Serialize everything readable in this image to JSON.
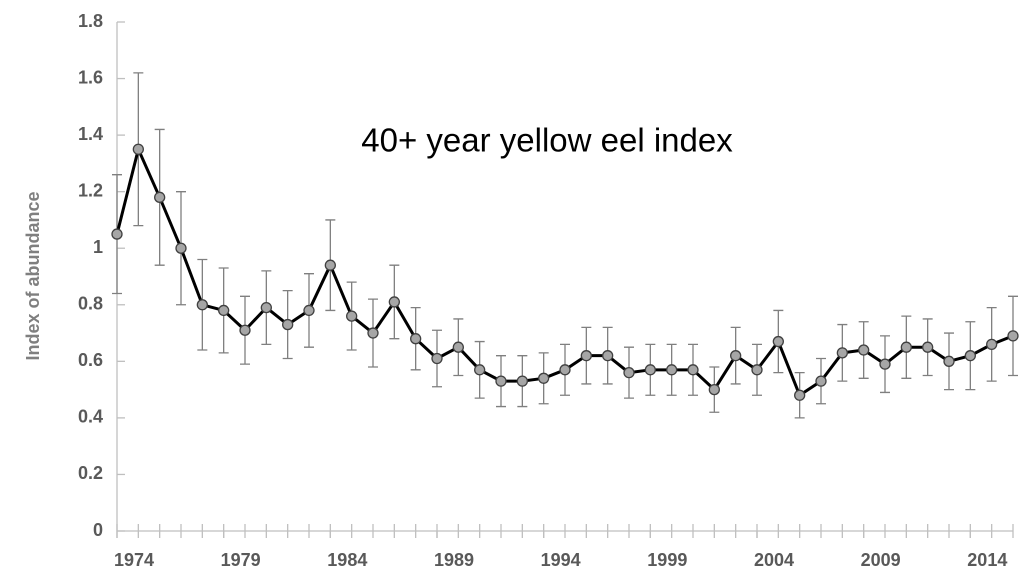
{
  "chart_data": {
    "type": "line",
    "annotation": "40+ year yellow eel index",
    "y_label": "Index of abundance",
    "x": [
      1974,
      1975,
      1976,
      1977,
      1978,
      1979,
      1980,
      1981,
      1982,
      1983,
      1984,
      1985,
      1986,
      1987,
      1988,
      1989,
      1990,
      1991,
      1992,
      1993,
      1994,
      1995,
      1996,
      1997,
      1998,
      1999,
      2000,
      2001,
      2002,
      2003,
      2004,
      2005,
      2006,
      2007,
      2008,
      2009,
      2010,
      2011,
      2012,
      2013,
      2014,
      2015,
      2016
    ],
    "series": [
      {
        "color": "#000000",
        "marker_color": "#a6a6a6",
        "values": [
          1.05,
          1.35,
          1.18,
          1.0,
          0.8,
          0.78,
          0.71,
          0.79,
          0.73,
          0.78,
          0.94,
          0.76,
          0.7,
          0.81,
          0.68,
          0.61,
          0.65,
          0.57,
          0.53,
          0.53,
          0.54,
          0.57,
          0.62,
          0.62,
          0.56,
          0.57,
          0.57,
          0.57,
          0.5,
          0.62,
          0.57,
          0.67,
          0.48,
          0.53,
          0.63,
          0.64,
          0.59,
          0.65,
          0.65,
          0.6,
          0.62,
          0.66,
          0.69
        ],
        "errors": [
          0.21,
          0.27,
          0.24,
          0.2,
          0.16,
          0.15,
          0.12,
          0.13,
          0.12,
          0.13,
          0.16,
          0.12,
          0.12,
          0.13,
          0.11,
          0.1,
          0.1,
          0.1,
          0.09,
          0.09,
          0.09,
          0.09,
          0.1,
          0.1,
          0.09,
          0.09,
          0.09,
          0.09,
          0.08,
          0.1,
          0.09,
          0.11,
          0.08,
          0.08,
          0.1,
          0.1,
          0.1,
          0.11,
          0.1,
          0.1,
          0.12,
          0.13,
          0.14
        ]
      }
    ],
    "xlim": [
      1974,
      2016
    ],
    "xticks": [
      1974,
      1979,
      1984,
      1989,
      1994,
      1999,
      2004,
      2009,
      2014
    ],
    "ylim": [
      0,
      1.8
    ],
    "yticks": [
      0,
      0.2,
      0.4,
      0.6,
      0.8,
      1,
      1.2,
      1.4,
      1.6,
      1.8
    ],
    "grid": false
  }
}
